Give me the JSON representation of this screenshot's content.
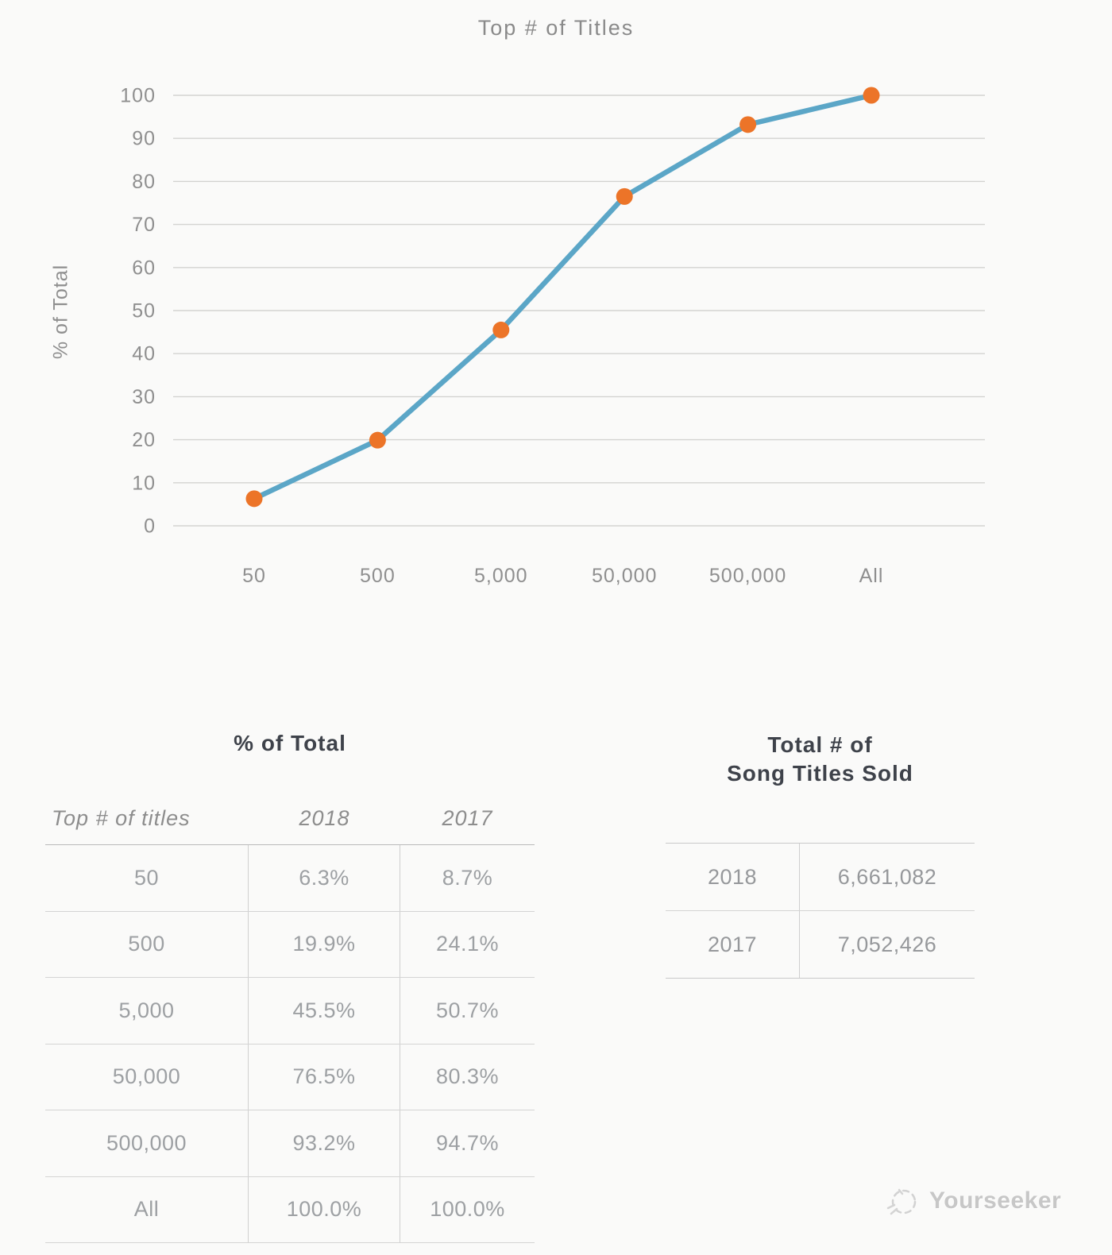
{
  "page": {
    "background": "#fafaf9",
    "watermark": {
      "label": "Yourseeker",
      "icon": "sketch-logo-icon",
      "color": "#c7c7c7"
    }
  },
  "chart": {
    "title": "Top # of Titles",
    "y_axis_title": "% of Total",
    "colors": {
      "line": "#5ba6c7",
      "marker": "#ec7428",
      "grid": "#d3d3d1",
      "axis_text": "#8f8f8f"
    }
  },
  "chart_data": {
    "type": "line",
    "title": "Top # of Titles",
    "xlabel": "",
    "ylabel": "% of Total",
    "categories": [
      "50",
      "500",
      "5,000",
      "50,000",
      "500,000",
      "All"
    ],
    "series": [
      {
        "name": "2018",
        "values": [
          6.3,
          19.9,
          45.5,
          76.5,
          93.2,
          100.0
        ]
      }
    ],
    "ylim": [
      0,
      100
    ],
    "ytick_step": 10,
    "grid": "horizontal",
    "legend": "none",
    "marker": "circle"
  },
  "tables": {
    "percent_of_total": {
      "title": "% of Total",
      "columns": [
        "Top # of titles",
        "2018",
        "2017"
      ],
      "rows": [
        [
          "50",
          "6.3%",
          "8.7%"
        ],
        [
          "500",
          "19.9%",
          "24.1%"
        ],
        [
          "5,000",
          "45.5%",
          "50.7%"
        ],
        [
          "50,000",
          "76.5%",
          "80.3%"
        ],
        [
          "500,000",
          "93.2%",
          "94.7%"
        ],
        [
          "All",
          "100.0%",
          "100.0%"
        ]
      ]
    },
    "totals": {
      "title_line1": "Total # of",
      "title_line2": "Song Titles Sold",
      "rows": [
        [
          "2018",
          "6,661,082"
        ],
        [
          "2017",
          "7,052,426"
        ]
      ]
    }
  }
}
